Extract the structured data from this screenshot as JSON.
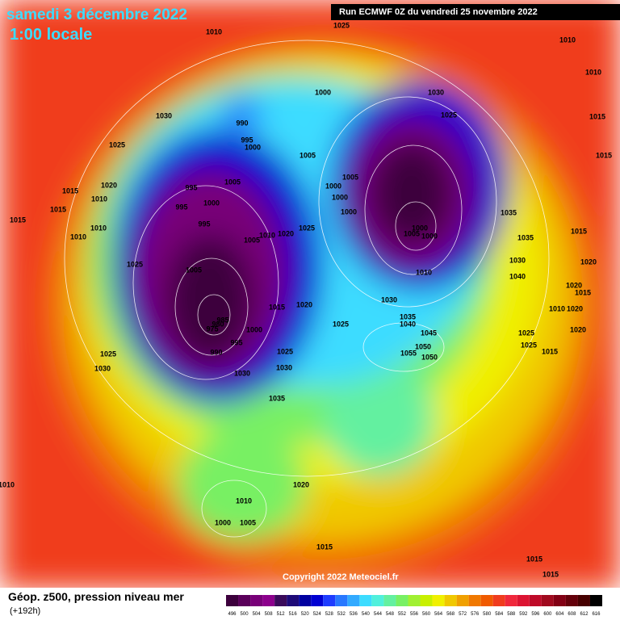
{
  "header": {
    "date": "samedi 3 décembre 2022",
    "time": "1:00 locale",
    "run": "Run ECMWF 0Z du vendredi 25 novembre 2022"
  },
  "footer": {
    "title": "Géop. z500, pression niveau mer",
    "lead": "(+192h)",
    "copyright": "Copyright 2022 Meteociel.fr"
  },
  "legend": {
    "values": [
      496,
      500,
      504,
      508,
      512,
      516,
      520,
      524,
      528,
      532,
      536,
      540,
      544,
      548,
      552,
      556,
      560,
      564,
      568,
      572,
      576,
      580,
      584,
      588,
      592,
      596,
      600,
      604,
      608,
      612,
      616
    ],
    "colors": [
      "#3c003c",
      "#5a005a",
      "#780078",
      "#8c008c",
      "#3a0a5a",
      "#1e0a78",
      "#0000a0",
      "#0000d2",
      "#1e3cff",
      "#2878ff",
      "#32aaff",
      "#3cdcff",
      "#50f0dc",
      "#64f0a0",
      "#78f064",
      "#a0f032",
      "#c8f000",
      "#f0f000",
      "#f0c800",
      "#f0a000",
      "#f07800",
      "#f05a00",
      "#f03c1e",
      "#f0283c",
      "#dc1432",
      "#be0a28",
      "#a00a1e",
      "#820014",
      "#64000a",
      "#460000",
      "#000000"
    ]
  },
  "isobar_labels": [
    1010,
    1025,
    1010,
    1010,
    1030,
    1000,
    1030,
    1025,
    1015,
    990,
    995,
    1000,
    1025,
    1005,
    1015,
    1020,
    995,
    1005,
    1005,
    1000,
    1000,
    1015,
    1010,
    1000,
    995,
    1000,
    1035,
    1015,
    1015,
    995,
    1025,
    1000,
    1005,
    1000,
    1010,
    1010,
    1015,
    1020,
    1010,
    1005,
    1035,
    1025,
    1030,
    1020,
    1005,
    1010,
    1040,
    1020,
    1015,
    1030,
    1020,
    1015,
    1010,
    1020,
    1035,
    1040,
    985,
    980,
    975,
    1025,
    1020,
    1000,
    1045,
    1025,
    995,
    1025,
    1025,
    1015,
    990,
    1050,
    1055,
    1050,
    1025,
    1030,
    1030,
    1030,
    1035,
    1020,
    1010,
    1010,
    1005,
    1000,
    1015,
    1015,
    1015
  ]
}
